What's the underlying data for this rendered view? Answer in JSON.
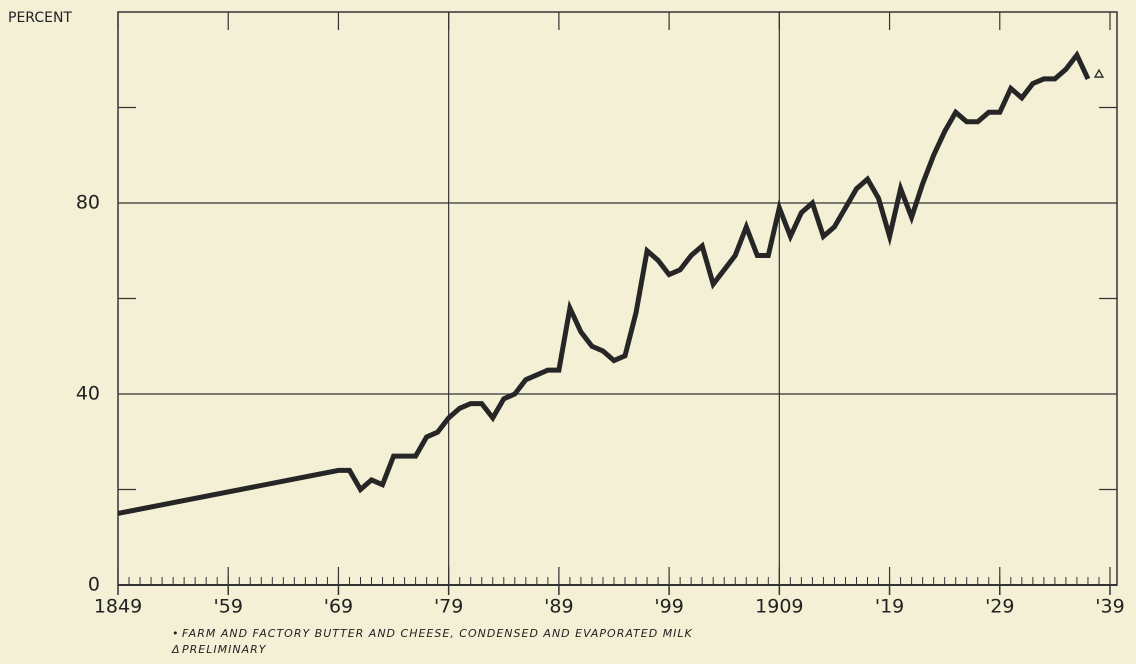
{
  "chart_data": {
    "type": "line",
    "ylabel": "PERCENT",
    "xlim": [
      1849,
      1939
    ],
    "ylim": [
      0,
      120
    ],
    "xticks": [
      {
        "value": 1849,
        "label": "1849"
      },
      {
        "value": 1859,
        "label": "'59"
      },
      {
        "value": 1869,
        "label": "'69"
      },
      {
        "value": 1879,
        "label": "'79"
      },
      {
        "value": 1889,
        "label": "'89"
      },
      {
        "value": 1899,
        "label": "'99"
      },
      1909,
      {
        "value": 1919,
        "label": "'19"
      },
      {
        "value": 1929,
        "label": "'29"
      },
      {
        "value": 1939,
        "label": "'39"
      }
    ],
    "xgrid_at": [
      1879,
      1909
    ],
    "xminor_step": 1,
    "yticks": [
      0,
      40,
      80
    ],
    "yminor_ticks": [
      20,
      60,
      100
    ],
    "ygrid_at": [
      40,
      80
    ],
    "series": [
      {
        "name": null,
        "color": "#262626",
        "x": [
          1849,
          1869,
          1870,
          1871,
          1872,
          1873,
          1874,
          1875,
          1876,
          1877,
          1878,
          1879,
          1880,
          1881,
          1882,
          1883,
          1884,
          1885,
          1886,
          1887,
          1888,
          1889,
          1890,
          1891,
          1892,
          1893,
          1894,
          1895,
          1896,
          1897,
          1898,
          1899,
          1900,
          1901,
          1902,
          1903,
          1904,
          1905,
          1906,
          1907,
          1908,
          1909,
          1910,
          1911,
          1912,
          1913,
          1914,
          1915,
          1916,
          1917,
          1918,
          1919,
          1920,
          1921,
          1922,
          1923,
          1924,
          1925,
          1926,
          1927,
          1928,
          1929,
          1930,
          1931,
          1932,
          1933,
          1934,
          1935,
          1936,
          1937
        ],
        "values": [
          15,
          24,
          24,
          20,
          22,
          21,
          27,
          27,
          27,
          31,
          32,
          35,
          37,
          38,
          38,
          35,
          39,
          40,
          43,
          44,
          45,
          45,
          58,
          53,
          50,
          49,
          47,
          48,
          57,
          70,
          68,
          65,
          66,
          69,
          71,
          63,
          66,
          69,
          75,
          69,
          69,
          79,
          73,
          78,
          80,
          73,
          75,
          79,
          83,
          85,
          81,
          73,
          83,
          77,
          84,
          90,
          95,
          99,
          97,
          97,
          99,
          99,
          104,
          102,
          105,
          106,
          106,
          108,
          111,
          106
        ]
      },
      {
        "name": "PRELIMINARY",
        "color": "#262626",
        "marker": "triangle",
        "x": [
          1938
        ],
        "values": [
          107
        ]
      }
    ],
    "footnotes": [
      "FARM AND FACTORY BUTTER AND CHEESE, CONDENSED AND EVAPORATED MILK",
      "PRELIMINARY"
    ],
    "footnote_markers": [
      "•",
      "Δ"
    ]
  }
}
